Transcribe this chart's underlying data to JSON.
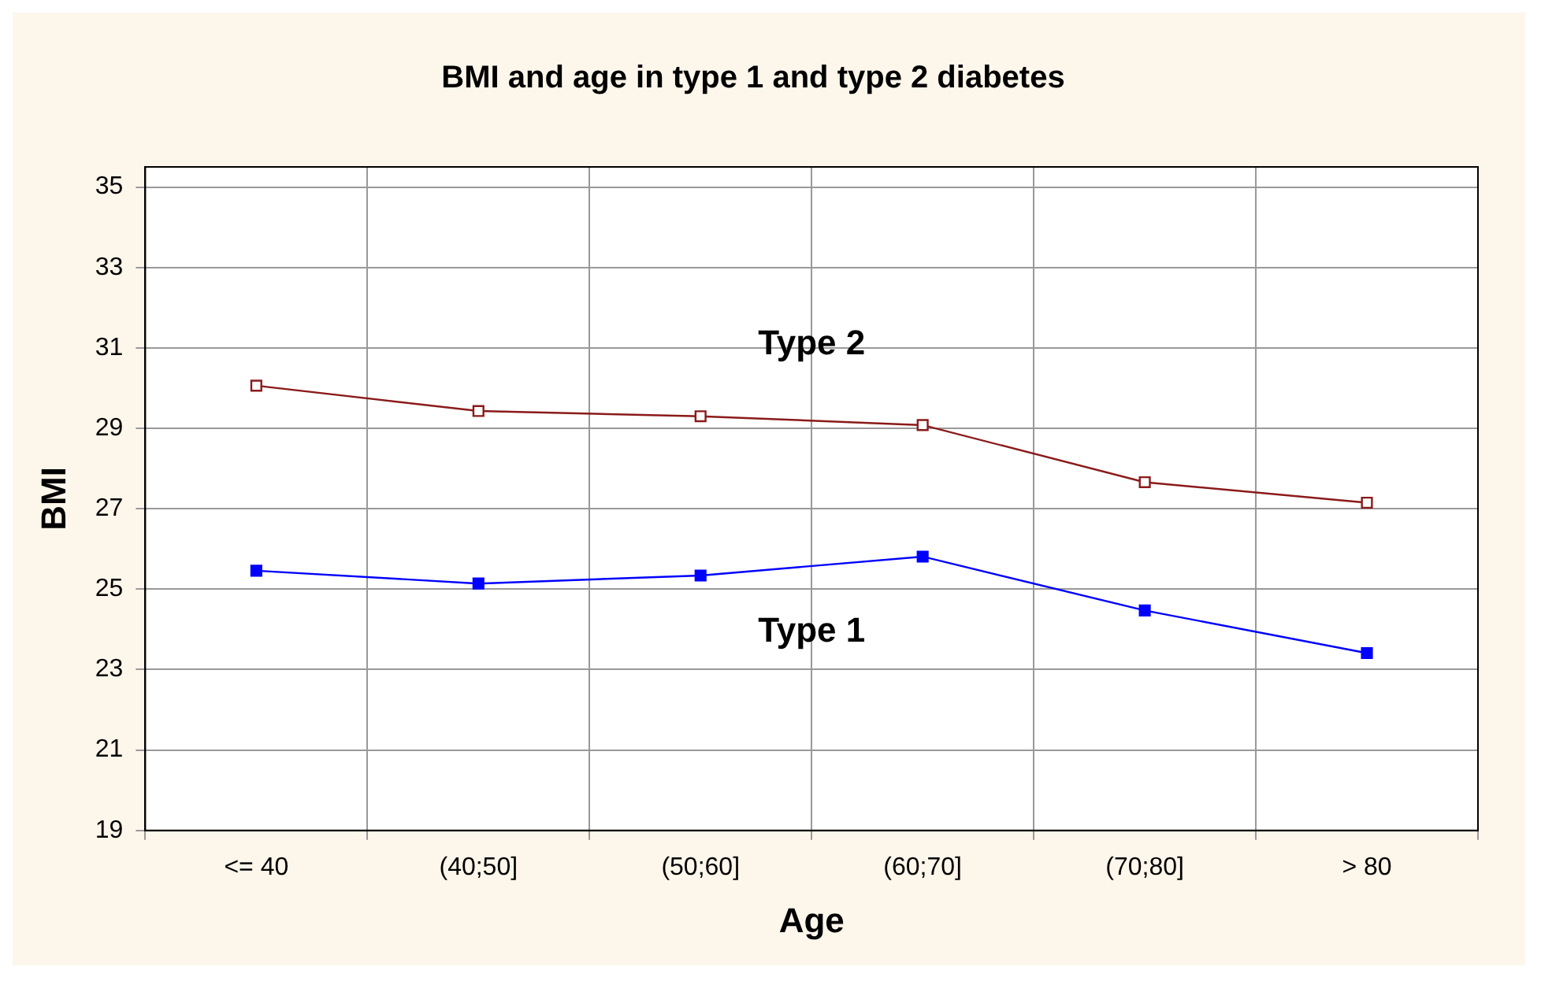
{
  "chart_data": {
    "type": "line",
    "title": "BMI and age in type 1 and type 2 diabetes",
    "xlabel": "Age",
    "ylabel": "BMI",
    "categories": [
      "<= 40",
      "(40;50]",
      "(50;60]",
      "(60;70]",
      "(70;80]",
      "> 80"
    ],
    "series": [
      {
        "name": "Type 2",
        "color": "#8b1a1a",
        "values": [
          30.06,
          29.43,
          29.3,
          29.08,
          27.66,
          27.15
        ]
      },
      {
        "name": "Type 1",
        "color": "#0000ff",
        "values": [
          25.46,
          25.14,
          25.34,
          25.81,
          24.47,
          23.41
        ]
      }
    ],
    "ylim": [
      19,
      35.5
    ],
    "yticks": [
      19,
      21,
      23,
      25,
      27,
      29,
      31,
      33,
      35
    ],
    "grid": true,
    "legend": false,
    "marker": "square",
    "line_style": "solid"
  }
}
